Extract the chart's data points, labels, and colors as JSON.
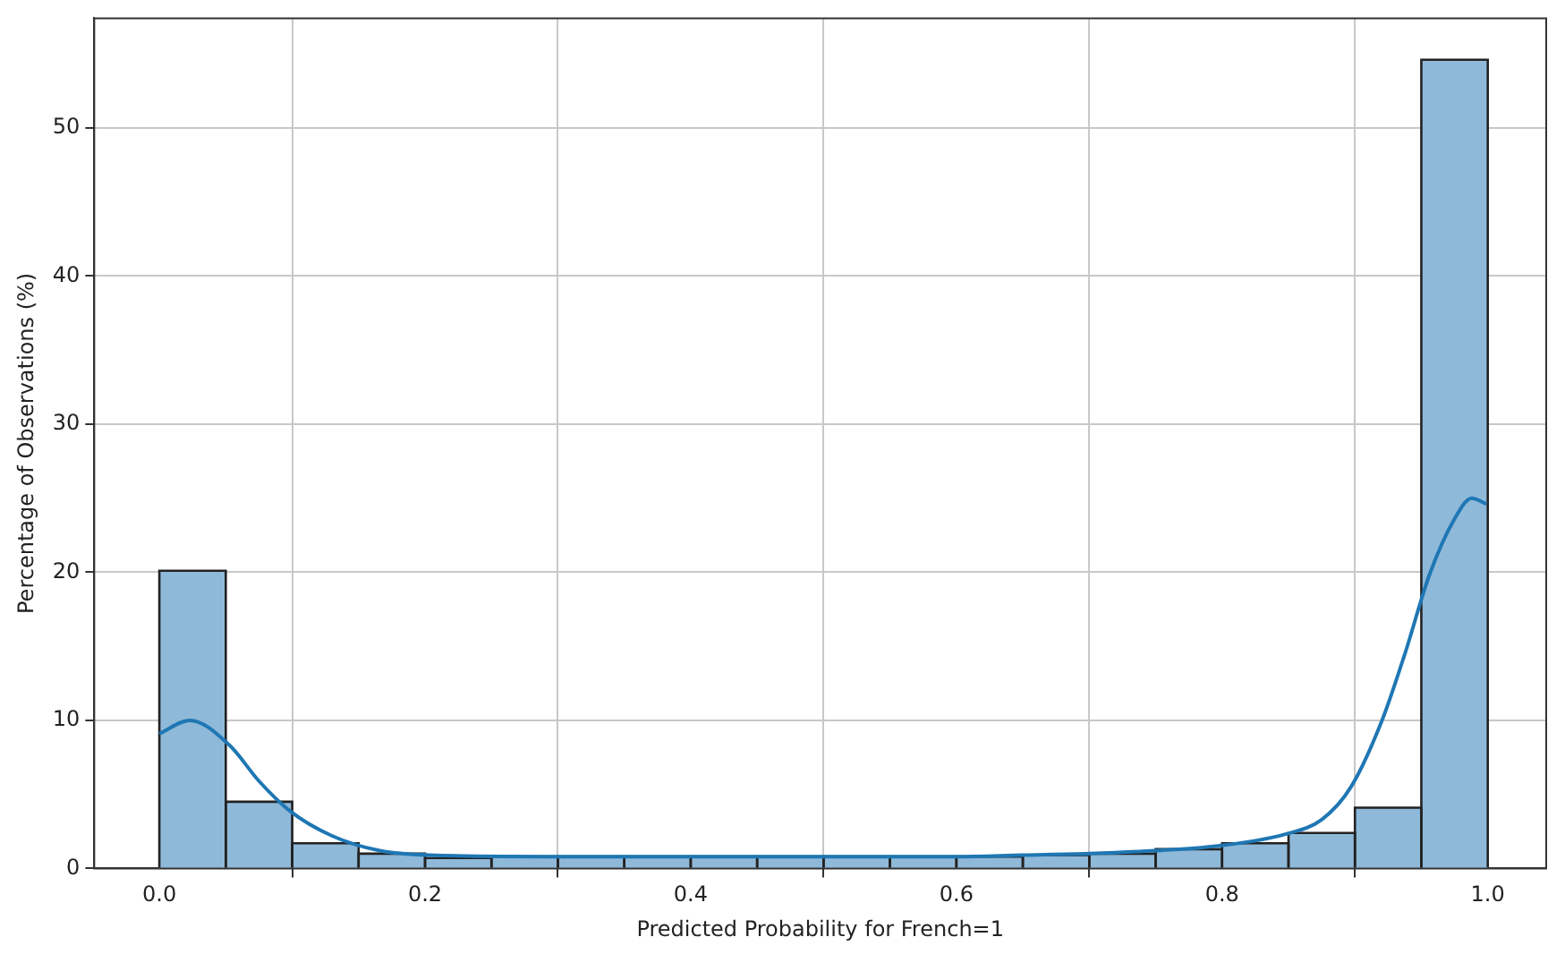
{
  "chart_data": {
    "type": "histogram",
    "xlabel": "Predicted Probability for French=1",
    "ylabel": "Percentage of Observations (%)",
    "bins": [
      0,
      0.05,
      0.1,
      0.15,
      0.2,
      0.25,
      0.3,
      0.35,
      0.4,
      0.45,
      0.5,
      0.55,
      0.6,
      0.65,
      0.7,
      0.75,
      0.8,
      0.85,
      0.9,
      0.95,
      1
    ],
    "values": [
      20.1,
      4.5,
      1.7,
      1.0,
      0.7,
      0.8,
      0.8,
      0.8,
      0.8,
      0.8,
      0.8,
      0.8,
      0.8,
      0.9,
      1.0,
      1.3,
      1.7,
      2.4,
      4.1,
      54.6
    ],
    "color": "#8fb9d9",
    "series": [
      {
        "type": "line",
        "color": "#1f77b4",
        "x": [
          0,
          0.023,
          0.053,
          0.075,
          0.098,
          0.13,
          0.166,
          0.203,
          0.3,
          0.4,
          0.5,
          0.6,
          0.65,
          0.7,
          0.75,
          0.795,
          0.847,
          0.875,
          0.897,
          0.92,
          0.938,
          0.956,
          0.975,
          0.988,
          0.999
        ],
        "values": [
          9.1,
          10.0,
          8.3,
          5.9,
          3.9,
          2.2,
          1.2,
          0.9,
          0.8,
          0.8,
          0.8,
          0.8,
          0.9,
          1.0,
          1.2,
          1.5,
          2.3,
          3.3,
          5.5,
          9.9,
          14.6,
          19.8,
          23.6,
          25.0,
          24.6
        ]
      }
    ],
    "xlim": [
      -0.049,
      1.044
    ],
    "ylim": [
      0,
      57.4
    ],
    "xticks": [
      {
        "value": 0,
        "label": "0.0"
      },
      {
        "value": 0.2,
        "label": "0.2"
      },
      {
        "value": 0.4,
        "label": "0.4"
      },
      {
        "value": 0.6,
        "label": "0.6"
      },
      {
        "value": 0.8,
        "label": "0.8"
      },
      {
        "value": 1,
        "label": "1.0"
      }
    ],
    "yticks": [
      0,
      10,
      20,
      30,
      40,
      50
    ],
    "grid": true,
    "marker": "none"
  }
}
